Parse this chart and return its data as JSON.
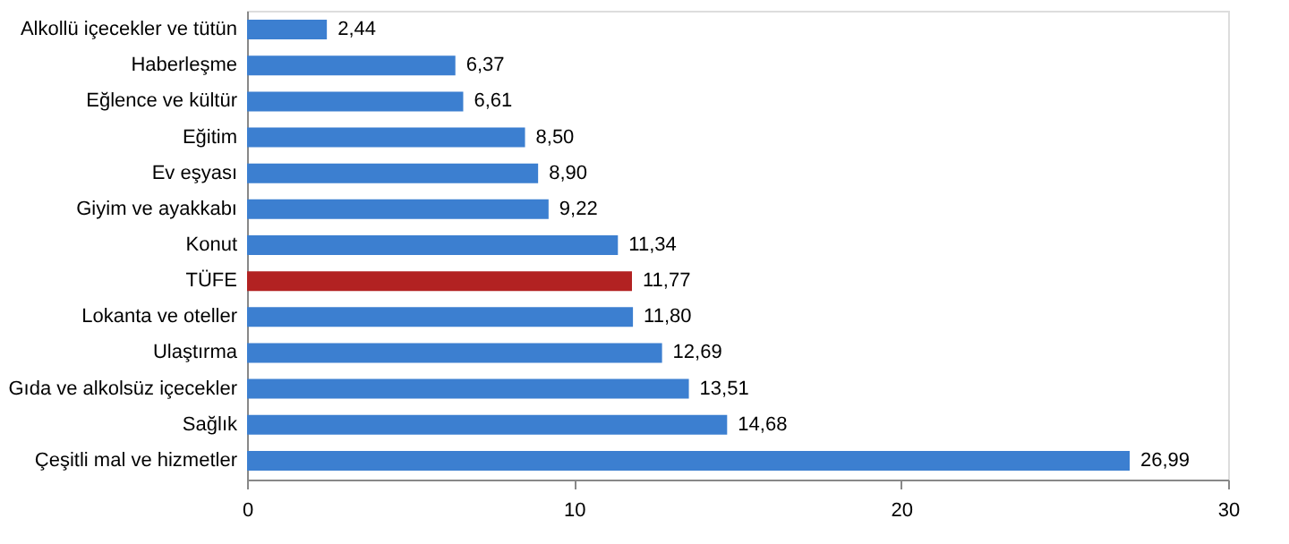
{
  "chart_data": {
    "type": "bar",
    "orientation": "horizontal",
    "categories": [
      "Alkollü içecekler ve tütün",
      "Haberleşme",
      "Eğlence ve kültür",
      "Eğitim",
      "Ev eşyası",
      "Giyim ve ayakkabı",
      "Konut",
      "TÜFE",
      "Lokanta ve oteller",
      "Ulaştırma",
      "Gıda ve alkolsüz içecekler",
      "Sağlık",
      "Çeşitli mal ve hizmetler"
    ],
    "values": [
      2.44,
      6.37,
      6.61,
      8.5,
      8.9,
      9.22,
      11.34,
      11.77,
      11.8,
      12.69,
      13.51,
      14.68,
      26.99
    ],
    "value_labels": [
      "2,44",
      "6,37",
      "6,61",
      "8,50",
      "8,90",
      "9,22",
      "11,34",
      "11,77",
      "11,80",
      "12,69",
      "13,51",
      "14,68",
      "26,99"
    ],
    "colors": [
      "#3c7fd0",
      "#3c7fd0",
      "#3c7fd0",
      "#3c7fd0",
      "#3c7fd0",
      "#3c7fd0",
      "#3c7fd0",
      "#b22222",
      "#3c7fd0",
      "#3c7fd0",
      "#3c7fd0",
      "#3c7fd0",
      "#3c7fd0"
    ],
    "xlim": [
      0,
      30
    ],
    "xticks": [
      0,
      10,
      20,
      30
    ],
    "grid": false
  }
}
